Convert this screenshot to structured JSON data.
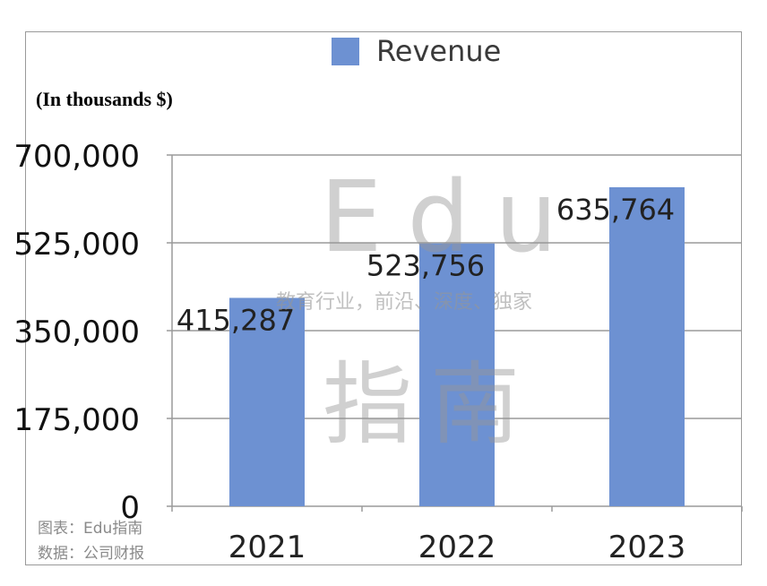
{
  "chart_data": {
    "type": "bar",
    "categories": [
      "2021",
      "2022",
      "2023"
    ],
    "series": [
      {
        "name": "Revenue",
        "values": [
          415287,
          523756,
          635764
        ],
        "color": "#6d91d2"
      }
    ],
    "data_labels": [
      "415,287",
      "523,756",
      "635,764"
    ],
    "ylim": [
      0,
      700000
    ],
    "yticks": [
      0,
      175000,
      350000,
      525000,
      700000
    ],
    "ytick_labels": [
      "0",
      "175,000",
      "350,000",
      "525,000",
      "700,000"
    ],
    "unit_label": "(In thousands $)",
    "legend_position": "top-center",
    "grid": true
  },
  "watermark": {
    "logo_top": "Edu",
    "tagline": "教育行业，前沿、深度、独家",
    "logo_bottom": "指南"
  },
  "source_notes": {
    "chart_by": "图表：Edu指南",
    "data_from": "数据：公司财报"
  }
}
